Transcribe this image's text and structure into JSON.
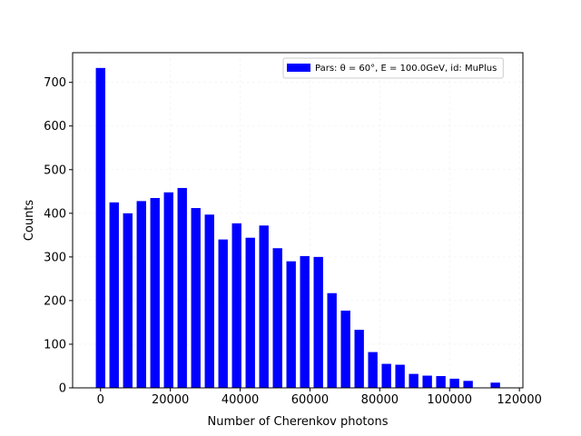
{
  "chart_data": {
    "type": "bar",
    "xlabel": "Number of Cherenkov photons",
    "ylabel": "Counts",
    "xlim": [
      -8000,
      121000
    ],
    "ylim": [
      0,
      768
    ],
    "x_ticks": [
      0,
      20000,
      40000,
      60000,
      80000,
      100000,
      120000
    ],
    "y_ticks": [
      0,
      100,
      200,
      300,
      400,
      500,
      600,
      700
    ],
    "grid": true,
    "legend_position": "top-right",
    "bar_width": 2700,
    "bar_color": "#0000ff",
    "series": [
      {
        "name": "Pars: θ = 60°, E = 100.0GeV, id: MuPlus",
        "x": [
          0,
          3900,
          7800,
          11700,
          15600,
          19500,
          23400,
          27300,
          31200,
          35100,
          39000,
          42900,
          46800,
          50700,
          54600,
          58500,
          62400,
          66300,
          70200,
          74100,
          78000,
          81900,
          85800,
          89700,
          93600,
          97500,
          101400,
          105300,
          109200,
          113100
        ],
        "values": [
          733,
          425,
          400,
          428,
          435,
          448,
          458,
          412,
          397,
          340,
          377,
          344,
          372,
          320,
          290,
          302,
          300,
          217,
          177,
          133,
          82,
          55,
          53,
          32,
          28,
          27,
          21,
          16,
          0,
          12
        ]
      }
    ]
  }
}
